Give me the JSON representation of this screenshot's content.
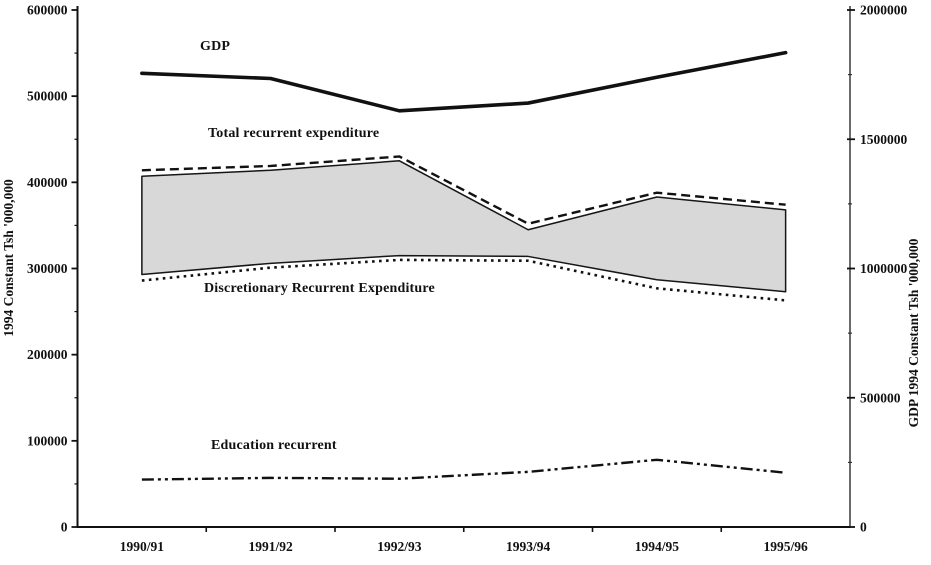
{
  "chart_data": {
    "type": "line",
    "title": "",
    "grid": false,
    "legend_position": "inline-annotations",
    "categories": [
      "1990/91",
      "1991/92",
      "1992/93",
      "1993/94",
      "1994/95",
      "1995/96"
    ],
    "series": [
      {
        "id": "gdp",
        "name": "GDP",
        "axis": "right",
        "style": "solid-thick",
        "values": [
          1755000,
          1735000,
          1610000,
          1640000,
          1740000,
          1835000
        ]
      },
      {
        "id": "total",
        "name": "Total recurrent expenditure",
        "axis": "left",
        "style": "dashed",
        "values": [
          414000,
          419000,
          430000,
          352000,
          388000,
          374000
        ]
      },
      {
        "id": "area_top",
        "name": "Recurrent expenditure shaded band (upper bound)",
        "axis": "left",
        "style": "area-top",
        "values": [
          407000,
          414000,
          425000,
          345000,
          383000,
          368000
        ]
      },
      {
        "id": "area_bottom",
        "name": "Recurrent expenditure shaded band (lower bound)",
        "axis": "left",
        "style": "area-bottom",
        "values": [
          293000,
          306000,
          315000,
          314000,
          287000,
          273000
        ]
      },
      {
        "id": "discretionary",
        "name": "Discretionary Recurrent Expenditure",
        "axis": "left",
        "style": "dotted",
        "values": [
          286000,
          301000,
          310000,
          309000,
          277000,
          263000
        ]
      },
      {
        "id": "education",
        "name": "Education recurrent",
        "axis": "left",
        "style": "dash-dot-dot",
        "values": [
          55000,
          57000,
          56000,
          64000,
          78000,
          63000
        ]
      }
    ],
    "left_axis": {
      "label": "1994 Constant Tsh '000,000",
      "min": 0,
      "max": 600000,
      "tick_step": 100000,
      "minor_step": 50000,
      "tick_labels": [
        "0",
        "100000",
        "200000",
        "300000",
        "400000",
        "500000",
        "600000"
      ]
    },
    "right_axis": {
      "label": "GDP 1994 Constant Tsh '000,000",
      "min": 0,
      "max": 2000000,
      "tick_step": 500000,
      "minor_step": 250000,
      "tick_labels": [
        "0",
        "500000",
        "1000000",
        "1500000",
        "2000000"
      ]
    },
    "annotations": [
      {
        "id": "gdp",
        "text": "GDP"
      },
      {
        "id": "total",
        "text": "Total recurrent expenditure"
      },
      {
        "id": "discretionary",
        "text": "Discretionary Recurrent Expenditure"
      },
      {
        "id": "education",
        "text": "Education recurrent"
      }
    ],
    "colors": {
      "line": "#111111",
      "area_fill": "#d8d8d8",
      "area_border": "#161616",
      "background": "#ffffff"
    }
  }
}
